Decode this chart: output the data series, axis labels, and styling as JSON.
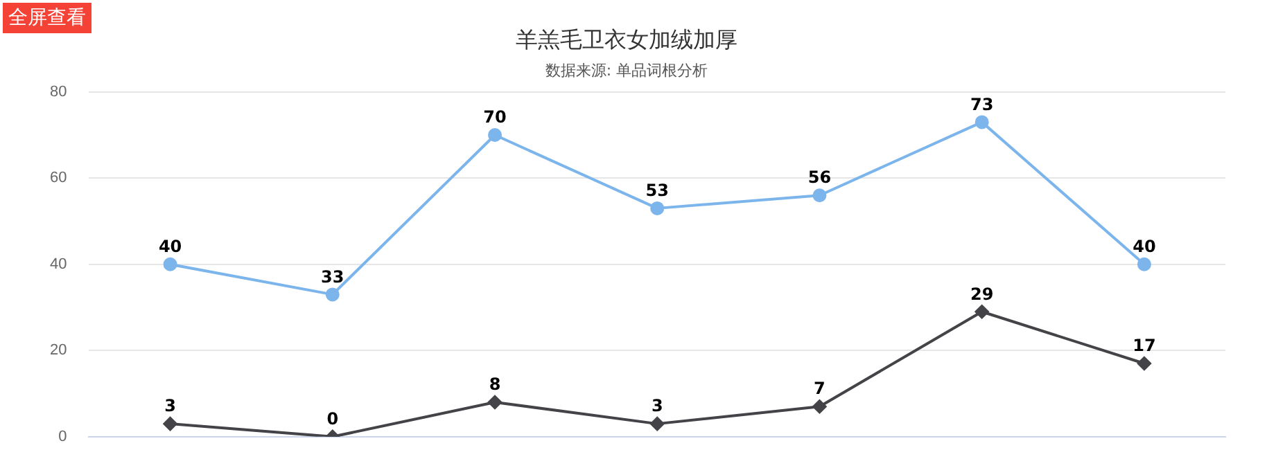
{
  "chart_data": {
    "type": "line",
    "title": "羊羔毛卫衣女加绒加厚",
    "subtitle": "数据来源: 单品词根分析",
    "annotations": [
      "全屏查看"
    ],
    "categories": [
      null,
      null,
      null,
      null,
      null,
      null,
      null
    ],
    "series": [
      {
        "color": "#7cb5ec",
        "marker": "circle",
        "values": [
          40,
          33,
          70,
          53,
          56,
          73,
          40
        ]
      },
      {
        "color": "#434348",
        "marker": "diamond",
        "values": [
          3,
          0,
          8,
          3,
          7,
          29,
          17
        ]
      }
    ],
    "ylim": [
      0,
      80
    ],
    "yticks": [
      0,
      20,
      40,
      60,
      80
    ],
    "grid": "y",
    "data_labels": true,
    "tick_labels": "y"
  }
}
